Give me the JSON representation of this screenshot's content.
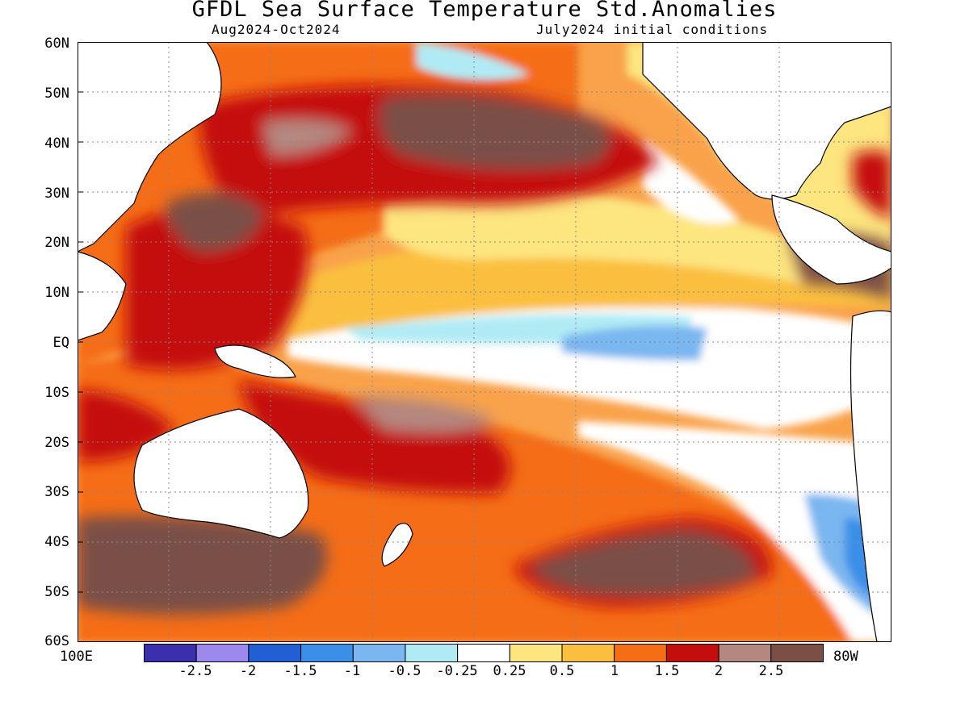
{
  "title": "GFDL Sea Surface Temperature Std.Anomalies",
  "subtitle_left": "Aug2024-Oct2024",
  "subtitle_right": "July2024 initial conditions",
  "y_labels": [
    "60N",
    "50N",
    "40N",
    "30N",
    "20N",
    "10N",
    "EQ",
    "10S",
    "20S",
    "30S",
    "40S",
    "50S",
    "60S"
  ],
  "x_label_left": "100E",
  "x_label_right": "80W",
  "colorbar": {
    "labels": [
      "-2.5",
      "-2",
      "-1.5",
      "-1",
      "-0.5",
      "-0.25",
      "0.25",
      "0.5",
      "1",
      "1.5",
      "2",
      "2.5"
    ],
    "colors": [
      "#3b2fad",
      "#9c88ee",
      "#2160d4",
      "#3a8fe8",
      "#7ab6f0",
      "#b0ebf5",
      "#ffffff",
      "#fde580",
      "#fbbf40",
      "#f56d14",
      "#c40e0e",
      "#b48880",
      "#7a4f46"
    ]
  },
  "chart_data": {
    "type": "heatmap",
    "title": "GFDL Sea Surface Temperature Std.Anomalies",
    "subtitle": [
      "Aug2024-Oct2024",
      "July2024 initial conditions"
    ],
    "region": {
      "lon_range": [
        "100E",
        "80W"
      ],
      "lat_range": [
        "60S",
        "60N"
      ]
    },
    "lat_ticks": [
      "60N",
      "50N",
      "40N",
      "30N",
      "20N",
      "10N",
      "EQ",
      "10S",
      "20S",
      "30S",
      "40S",
      "50S",
      "60S"
    ],
    "contour_levels": [
      -2.5,
      -2,
      -1.5,
      -1,
      -0.5,
      -0.25,
      0.25,
      0.5,
      1,
      1.5,
      2,
      2.5
    ],
    "grid": true
  }
}
